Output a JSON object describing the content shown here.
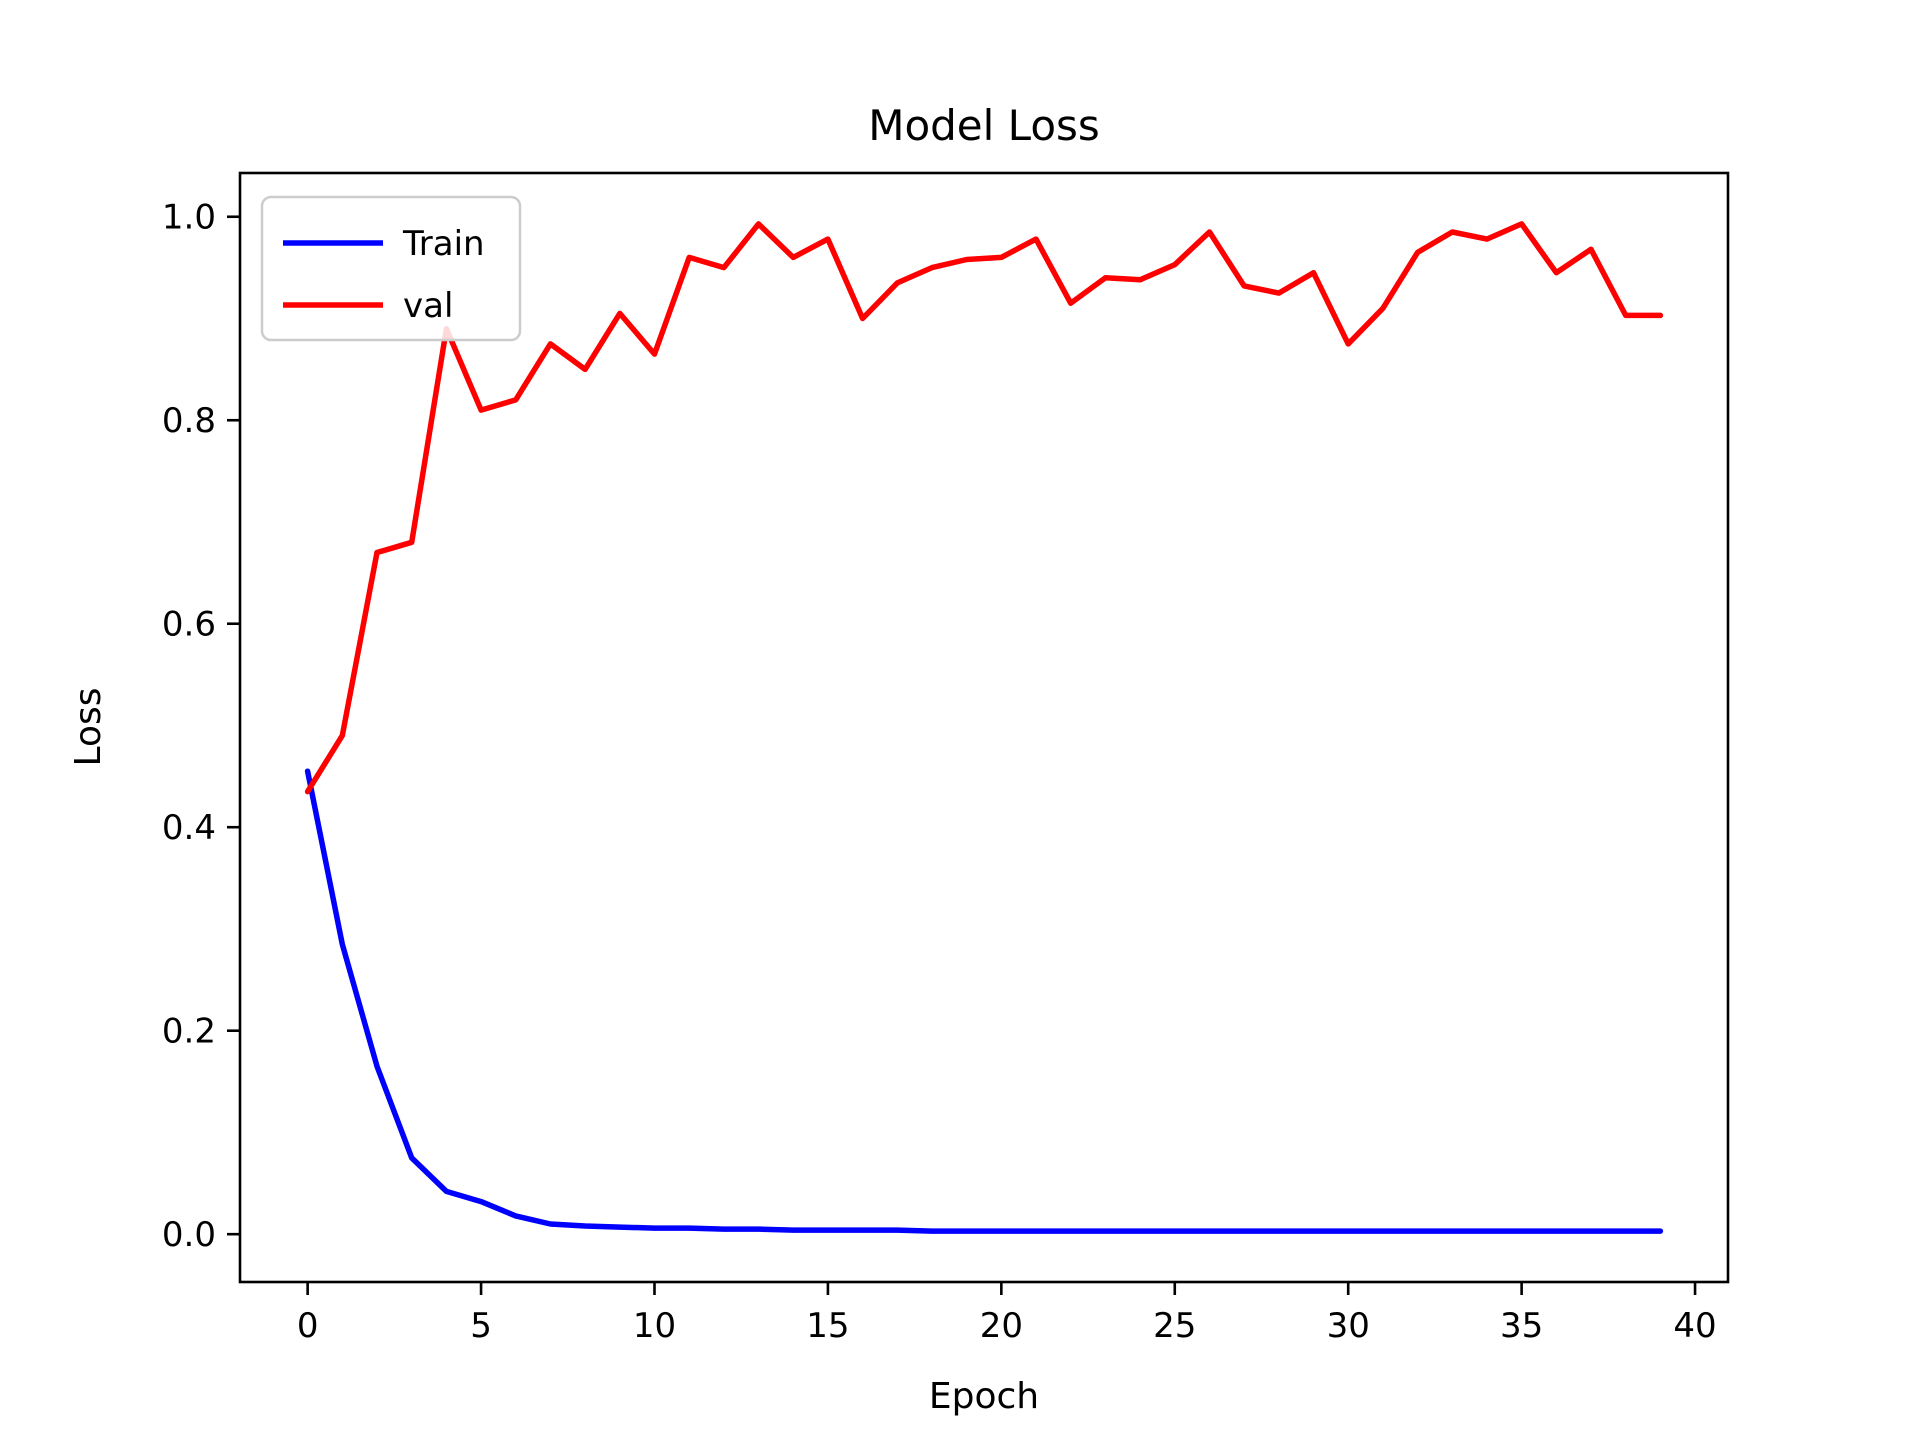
{
  "figure": {
    "title": "Model Loss",
    "xlabel": "Epoch",
    "ylabel": "Loss"
  },
  "chart_data": {
    "type": "line",
    "title": "Model Loss",
    "xlabel": "Epoch",
    "ylabel": "Loss",
    "grid": false,
    "legend_position": "upper left",
    "xlim": [
      -1.95,
      40.95
    ],
    "ylim": [
      -0.047,
      1.043
    ],
    "xticks": [
      0,
      5,
      10,
      15,
      20,
      25,
      30,
      35,
      40
    ],
    "yticks": [
      0.0,
      0.2,
      0.4,
      0.6,
      0.8,
      1.0
    ],
    "x": [
      0,
      1,
      2,
      3,
      4,
      5,
      6,
      7,
      8,
      9,
      10,
      11,
      12,
      13,
      14,
      15,
      16,
      17,
      18,
      19,
      20,
      21,
      22,
      23,
      24,
      25,
      26,
      27,
      28,
      29,
      30,
      31,
      32,
      33,
      34,
      35,
      36,
      37,
      38,
      39
    ],
    "series": [
      {
        "name": "Train",
        "color": "#0000ff",
        "values": [
          0.455,
          0.285,
          0.165,
          0.075,
          0.042,
          0.032,
          0.018,
          0.01,
          0.008,
          0.007,
          0.006,
          0.006,
          0.005,
          0.005,
          0.004,
          0.004,
          0.004,
          0.004,
          0.003,
          0.003,
          0.003,
          0.003,
          0.003,
          0.003,
          0.003,
          0.003,
          0.003,
          0.003,
          0.003,
          0.003,
          0.003,
          0.003,
          0.003,
          0.003,
          0.003,
          0.003,
          0.003,
          0.003,
          0.003,
          0.003
        ]
      },
      {
        "name": "val",
        "color": "#ff0000",
        "values": [
          0.435,
          0.49,
          0.67,
          0.68,
          0.89,
          0.81,
          0.82,
          0.875,
          0.85,
          0.905,
          0.865,
          0.96,
          0.95,
          0.993,
          0.96,
          0.978,
          0.9,
          0.935,
          0.95,
          0.958,
          0.96,
          0.978,
          0.915,
          0.94,
          0.938,
          0.953,
          0.985,
          0.932,
          0.925,
          0.945,
          0.875,
          0.91,
          0.965,
          0.985,
          0.978,
          0.993,
          0.945,
          0.968,
          0.903,
          0.903
        ]
      }
    ]
  }
}
